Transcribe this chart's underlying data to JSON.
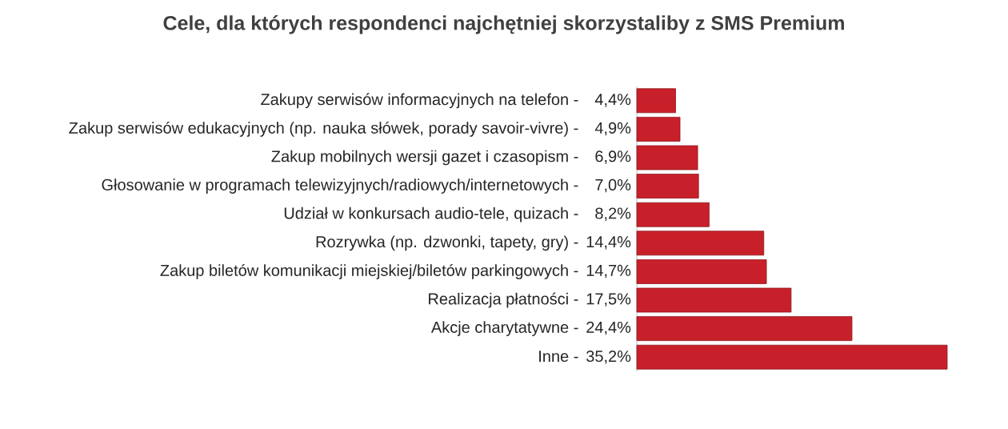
{
  "chart_data": {
    "type": "bar",
    "orientation": "horizontal",
    "title": "Cele, dla których respondenci najchętniej skorzystaliby z SMS Premium",
    "categories": [
      "Zakupy serwisów informacyjnych na telefon -",
      "Zakup serwisów edukacyjnych (np. nauka słówek, porady savoir-vivre) -",
      "Zakup mobilnych wersji gazet i czasopism -",
      "Głosowanie w programach telewizyjnych/radiowych/internetowych -",
      "Udział w konkursach audio-tele, quizach -",
      "Rozrywka (np. dzwonki, tapety, gry) -",
      "Zakup biletów komunikacji miejskiej/biletów parkingowych -",
      "Realizacja płatności -",
      "Akcje charytatywne -",
      "Inne -"
    ],
    "values": [
      4.4,
      4.9,
      6.9,
      7.0,
      8.2,
      14.4,
      14.7,
      17.5,
      24.4,
      35.2
    ],
    "value_labels": [
      "4,4%",
      "4,9%",
      "6,9%",
      "7,0%",
      "8,2%",
      "14,4%",
      "14,7%",
      "17,5%",
      "24,4%",
      "35,2%"
    ],
    "color": "#c8202a"
  }
}
